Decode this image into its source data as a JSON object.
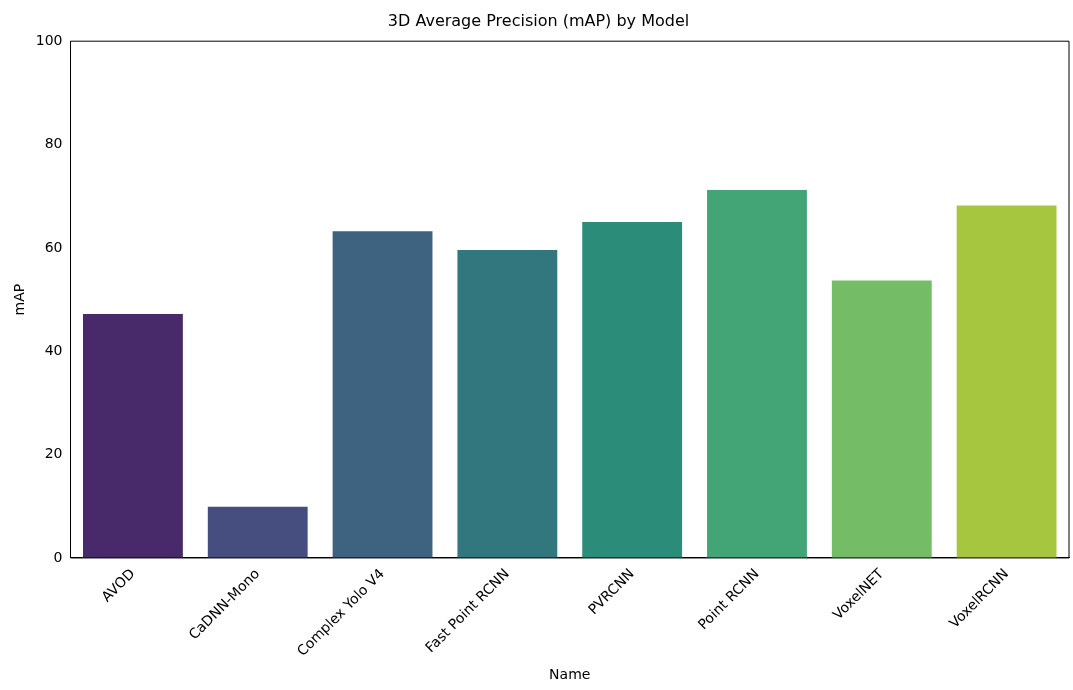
{
  "chart_data": {
    "type": "bar",
    "title": "3D Average Precision (mAP) by Model",
    "xlabel": "Name",
    "ylabel": "mAP",
    "categories": [
      "AVOD",
      "CaDNN-Mono",
      "Complex Yolo V4",
      "Fast Point RCNN",
      "PVRCNN",
      "Point RCNN",
      "VoxelNET",
      "VoxelRCNN"
    ],
    "values": [
      47.2,
      9.9,
      63.2,
      59.6,
      65,
      71.2,
      53.7,
      68.2
    ],
    "colors": [
      "#482a6b",
      "#464e7f",
      "#3d6381",
      "#32777e",
      "#2b8c7a",
      "#43a575",
      "#74bd66",
      "#a7c63f"
    ],
    "ylim": [
      0,
      100
    ],
    "yticks": [
      0,
      20,
      40,
      60,
      80,
      100
    ],
    "grid": false,
    "legend": false
  }
}
